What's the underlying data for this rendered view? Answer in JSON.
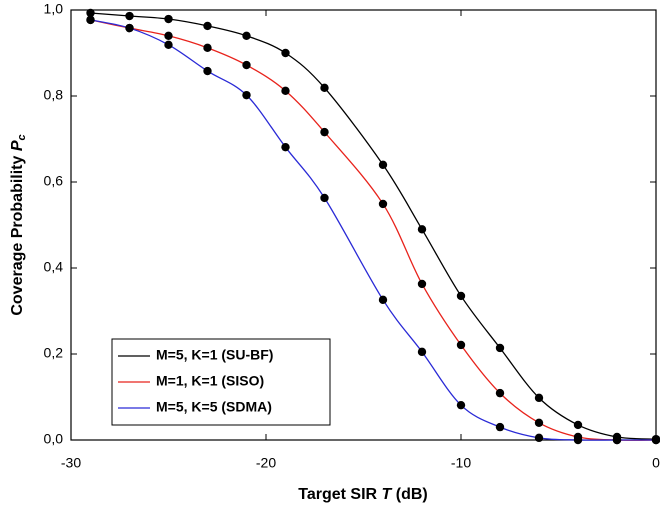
{
  "chart_data": {
    "type": "line",
    "xlabel": [
      "Target SIR",
      "T",
      "(dB)"
    ],
    "ylabel": [
      "Coverage Probability",
      "P",
      "c"
    ],
    "x": [
      -29,
      -27,
      -25,
      -23,
      -21,
      -19,
      -17,
      -14,
      -12,
      -10,
      -8,
      -6,
      -4,
      -2,
      0
    ],
    "series": [
      {
        "name": "M=5, K=1 (SU-BF)",
        "color": "#000000",
        "values": [
          0.993,
          0.986,
          0.979,
          0.963,
          0.94,
          0.9,
          0.819,
          0.64,
          0.49,
          0.335,
          0.214,
          0.098,
          0.035,
          0.007,
          0.002
        ]
      },
      {
        "name": "M=1, K=1 (SISO)",
        "color": "#e8231c",
        "values": [
          0.977,
          0.958,
          0.94,
          0.912,
          0.872,
          0.812,
          0.716,
          0.549,
          0.363,
          0.221,
          0.109,
          0.04,
          0.007,
          0.0,
          0.0
        ]
      },
      {
        "name": "M=5, K=5 (SDMA)",
        "color": "#2a2ad6",
        "values": [
          0.977,
          0.958,
          0.919,
          0.858,
          0.802,
          0.681,
          0.563,
          0.326,
          0.205,
          0.081,
          0.03,
          0.005,
          0.0,
          0.0,
          0.0
        ]
      }
    ],
    "marker_color": "#000000",
    "xlim": [
      -30,
      0
    ],
    "xticks": [
      -30,
      -20,
      -10,
      0
    ],
    "ylim": [
      0,
      1
    ],
    "yticks": [
      {
        "value": 0,
        "label": "0,0"
      },
      {
        "value": 0.2,
        "label": "0,2"
      },
      {
        "value": 0.4,
        "label": "0,4"
      },
      {
        "value": 0.6,
        "label": "0,6"
      },
      {
        "value": 0.8,
        "label": "0,8"
      },
      {
        "value": 1,
        "label": "1,0"
      }
    ],
    "legend": "lower left",
    "grid": false
  }
}
